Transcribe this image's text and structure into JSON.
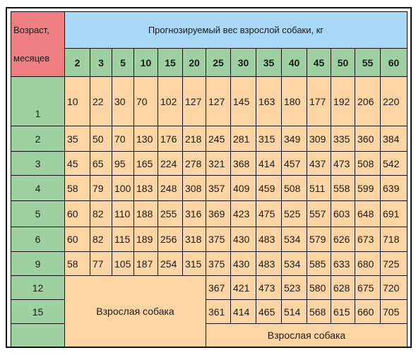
{
  "header": {
    "age_line1": "Возраст,",
    "age_line2": "месяцев",
    "weight_title": "Прогнозируемый вес взрослой собаки, кг"
  },
  "weights": [
    "2",
    "3",
    "5",
    "10",
    "15",
    "20",
    "25",
    "30",
    "35",
    "40",
    "45",
    "50",
    "55",
    "60"
  ],
  "rows": [
    {
      "age": "1",
      "values": [
        "10",
        "22",
        "30",
        "70",
        "102",
        "127",
        "127",
        "145",
        "163",
        "180",
        "177",
        "192",
        "206",
        "220"
      ]
    },
    {
      "age": "2",
      "values": [
        "35",
        "50",
        "70",
        "130",
        "176",
        "218",
        "245",
        "281",
        "315",
        "349",
        "309",
        "335",
        "360",
        "384"
      ]
    },
    {
      "age": "3",
      "values": [
        "45",
        "65",
        "95",
        "165",
        "224",
        "278",
        "321",
        "368",
        "414",
        "457",
        "437",
        "473",
        "508",
        "542"
      ]
    },
    {
      "age": "4",
      "values": [
        "58",
        "79",
        "100",
        "183",
        "248",
        "308",
        "357",
        "409",
        "459",
        "508",
        "511",
        "558",
        "599",
        "639"
      ]
    },
    {
      "age": "5",
      "values": [
        "60",
        "82",
        "110",
        "188",
        "255",
        "316",
        "369",
        "423",
        "475",
        "525",
        "557",
        "603",
        "648",
        "691"
      ]
    },
    {
      "age": "6",
      "values": [
        "60",
        "82",
        "115",
        "189",
        "256",
        "318",
        "375",
        "430",
        "483",
        "534",
        "579",
        "626",
        "673",
        "718"
      ]
    },
    {
      "age": "9",
      "values": [
        "58",
        "77",
        "105",
        "187",
        "254",
        "315",
        "375",
        "430",
        "483",
        "534",
        "585",
        "633",
        "680",
        "725"
      ]
    },
    {
      "age": "12",
      "values": [
        "367",
        "421",
        "473",
        "523",
        "580",
        "628",
        "675",
        "720"
      ]
    },
    {
      "age": "15",
      "values": [
        "361",
        "414",
        "465",
        "514",
        "568",
        "615",
        "660",
        "705"
      ]
    },
    {
      "age": "",
      "values": []
    }
  ],
  "adult_dog_label_left": "Взрослая собака",
  "adult_dog_label_right": "Взрослая собака"
}
